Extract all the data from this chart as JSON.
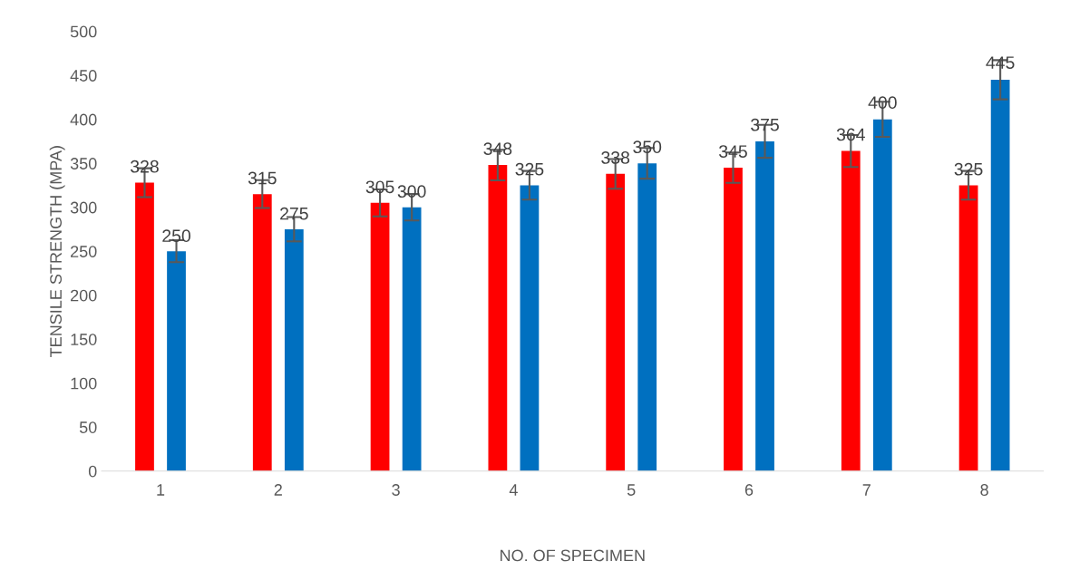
{
  "chart_data": {
    "type": "bar",
    "xlabel": "NO. OF SPECIMEN",
    "ylabel": "TENSILE STRENGTH (MPA)",
    "categories": [
      "1",
      "2",
      "3",
      "4",
      "5",
      "6",
      "7",
      "8"
    ],
    "series": [
      {
        "color": "#ff0000",
        "values": [
          328,
          315,
          305,
          348,
          338,
          345,
          364,
          325
        ],
        "errors": [
          16.4,
          15.8,
          15.3,
          17.4,
          16.9,
          17.3,
          18.2,
          16.3
        ]
      },
      {
        "color": "#0070c0",
        "values": [
          250,
          275,
          300,
          325,
          350,
          375,
          400,
          445
        ],
        "errors": [
          12.5,
          13.8,
          15,
          16.3,
          17.5,
          18.8,
          20,
          22.3
        ]
      }
    ],
    "ylim": [
      0,
      500
    ],
    "yticks": [
      0,
      50,
      100,
      150,
      200,
      250,
      300,
      350,
      400,
      450,
      500
    ],
    "data_labels": true,
    "grid": false,
    "legend": false
  }
}
